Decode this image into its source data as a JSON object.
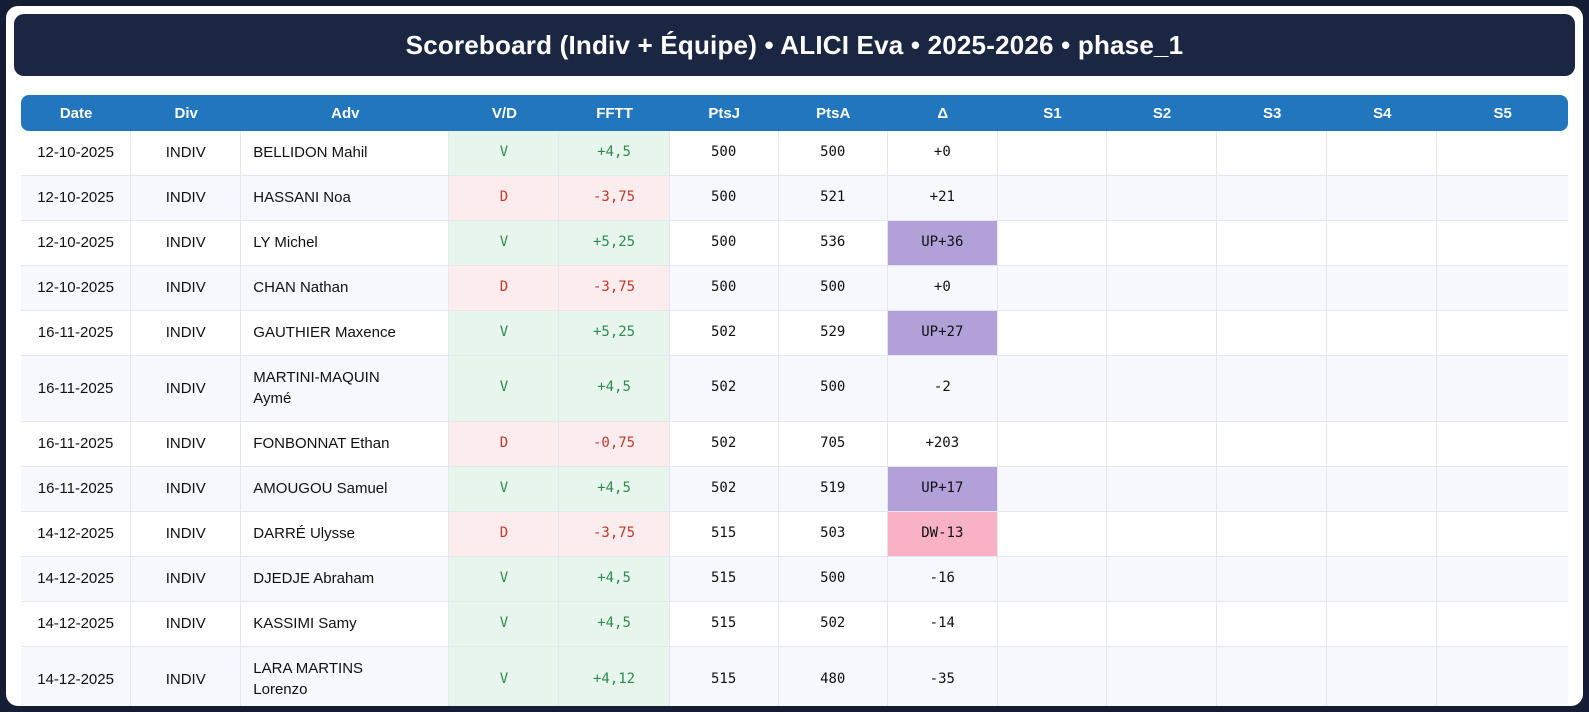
{
  "title": "Scoreboard (Indiv + Équipe) • ALICI Eva • 2025-2026 • phase_1",
  "colors": {
    "frame": "#141d33",
    "title_bar": "#1b2742",
    "header_blue": "#2176bd",
    "win_bg": "#e7f5ec",
    "win_text": "#2e8b4f",
    "loss_bg": "#fdecee",
    "loss_text": "#c0392b",
    "delta_up_bg": "#b2a1d9",
    "delta_down_bg": "#f9b1c6",
    "stripe": "#f7f8fd"
  },
  "table": {
    "columns": [
      "Date",
      "Div",
      "Adv",
      "V/D",
      "FFTT",
      "PtsJ",
      "PtsA",
      "Δ",
      "S1",
      "S2",
      "S3",
      "S4",
      "S5"
    ],
    "rows": [
      {
        "date": "12-10-2025",
        "div": "INDIV",
        "adv": "BELLIDON Mahil",
        "vd": "V",
        "fftt": "+4,5",
        "ptsj": "500",
        "ptsa": "500",
        "delta": "+0",
        "delta_type": "none",
        "s1": "",
        "s2": "",
        "s3": "",
        "s4": "",
        "s5": ""
      },
      {
        "date": "12-10-2025",
        "div": "INDIV",
        "adv": "HASSANI Noa",
        "vd": "D",
        "fftt": "-3,75",
        "ptsj": "500",
        "ptsa": "521",
        "delta": "+21",
        "delta_type": "none",
        "s1": "",
        "s2": "",
        "s3": "",
        "s4": "",
        "s5": ""
      },
      {
        "date": "12-10-2025",
        "div": "INDIV",
        "adv": "LY Michel",
        "vd": "V",
        "fftt": "+5,25",
        "ptsj": "500",
        "ptsa": "536",
        "delta": "UP+36",
        "delta_type": "up",
        "s1": "",
        "s2": "",
        "s3": "",
        "s4": "",
        "s5": ""
      },
      {
        "date": "12-10-2025",
        "div": "INDIV",
        "adv": "CHAN Nathan",
        "vd": "D",
        "fftt": "-3,75",
        "ptsj": "500",
        "ptsa": "500",
        "delta": "+0",
        "delta_type": "none",
        "s1": "",
        "s2": "",
        "s3": "",
        "s4": "",
        "s5": ""
      },
      {
        "date": "16-11-2025",
        "div": "INDIV",
        "adv": "GAUTHIER Maxence",
        "vd": "V",
        "fftt": "+5,25",
        "ptsj": "502",
        "ptsa": "529",
        "delta": "UP+27",
        "delta_type": "up",
        "s1": "",
        "s2": "",
        "s3": "",
        "s4": "",
        "s5": ""
      },
      {
        "date": "16-11-2025",
        "div": "INDIV",
        "adv": "MARTINI-MAQUIN Aymé",
        "vd": "V",
        "fftt": "+4,5",
        "ptsj": "502",
        "ptsa": "500",
        "delta": "-2",
        "delta_type": "none",
        "s1": "",
        "s2": "",
        "s3": "",
        "s4": "",
        "s5": ""
      },
      {
        "date": "16-11-2025",
        "div": "INDIV",
        "adv": "FONBONNAT Ethan",
        "vd": "D",
        "fftt": "-0,75",
        "ptsj": "502",
        "ptsa": "705",
        "delta": "+203",
        "delta_type": "none",
        "s1": "",
        "s2": "",
        "s3": "",
        "s4": "",
        "s5": ""
      },
      {
        "date": "16-11-2025",
        "div": "INDIV",
        "adv": "AMOUGOU Samuel",
        "vd": "V",
        "fftt": "+4,5",
        "ptsj": "502",
        "ptsa": "519",
        "delta": "UP+17",
        "delta_type": "up",
        "s1": "",
        "s2": "",
        "s3": "",
        "s4": "",
        "s5": ""
      },
      {
        "date": "14-12-2025",
        "div": "INDIV",
        "adv": "DARRÉ Ulysse",
        "vd": "D",
        "fftt": "-3,75",
        "ptsj": "515",
        "ptsa": "503",
        "delta": "DW-13",
        "delta_type": "down",
        "s1": "",
        "s2": "",
        "s3": "",
        "s4": "",
        "s5": ""
      },
      {
        "date": "14-12-2025",
        "div": "INDIV",
        "adv": "DJEDJE Abraham",
        "vd": "V",
        "fftt": "+4,5",
        "ptsj": "515",
        "ptsa": "500",
        "delta": "-16",
        "delta_type": "none",
        "s1": "",
        "s2": "",
        "s3": "",
        "s4": "",
        "s5": ""
      },
      {
        "date": "14-12-2025",
        "div": "INDIV",
        "adv": "KASSIMI Samy",
        "vd": "V",
        "fftt": "+4,5",
        "ptsj": "515",
        "ptsa": "502",
        "delta": "-14",
        "delta_type": "none",
        "s1": "",
        "s2": "",
        "s3": "",
        "s4": "",
        "s5": ""
      },
      {
        "date": "14-12-2025",
        "div": "INDIV",
        "adv": "LARA MARTINS Lorenzo",
        "vd": "V",
        "fftt": "+4,12",
        "ptsj": "515",
        "ptsa": "480",
        "delta": "-35",
        "delta_type": "none",
        "s1": "",
        "s2": "",
        "s3": "",
        "s4": "",
        "s5": ""
      }
    ]
  }
}
